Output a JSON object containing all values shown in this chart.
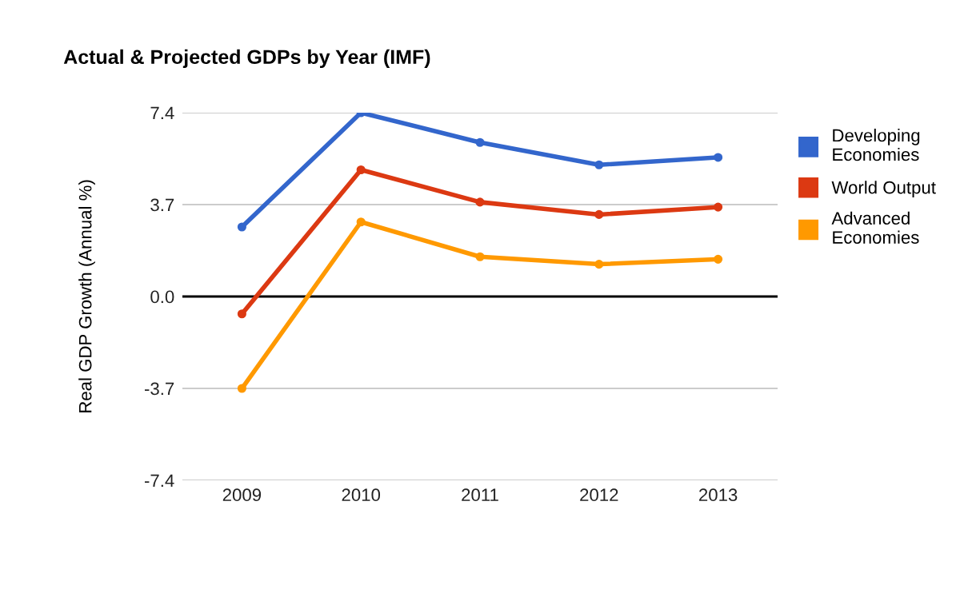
{
  "chart_data": {
    "type": "line",
    "title": "Actual & Projected GDPs by Year (IMF)",
    "ylabel": "Real GDP Growth (Annual %)",
    "categories": [
      "2009",
      "2010",
      "2011",
      "2012",
      "2013"
    ],
    "series": [
      {
        "name": "Developing Economies",
        "color": "#3366cc",
        "values": [
          2.8,
          7.4,
          6.2,
          5.3,
          5.6
        ]
      },
      {
        "name": "World Output",
        "color": "#dc3912",
        "values": [
          -0.7,
          5.1,
          3.8,
          3.3,
          3.6
        ]
      },
      {
        "name": "Advanced Economies",
        "color": "#ff9900",
        "values": [
          -3.7,
          3.0,
          1.6,
          1.3,
          1.5
        ]
      }
    ],
    "ylim": [
      -7.4,
      7.4
    ],
    "yticks": [
      {
        "value": -7.4,
        "label": "-7.4"
      },
      {
        "value": -3.7,
        "label": "-3.7"
      },
      {
        "value": 0,
        "label": "0.0"
      },
      {
        "value": 3.7,
        "label": "3.7"
      },
      {
        "value": 7.4,
        "label": "7.4"
      }
    ],
    "ref_lines": [
      {
        "axis": "y",
        "value": 0,
        "color": "#000000"
      }
    ],
    "grid": "y",
    "legend": "top right",
    "marker": "circle",
    "line_style": "solid"
  }
}
